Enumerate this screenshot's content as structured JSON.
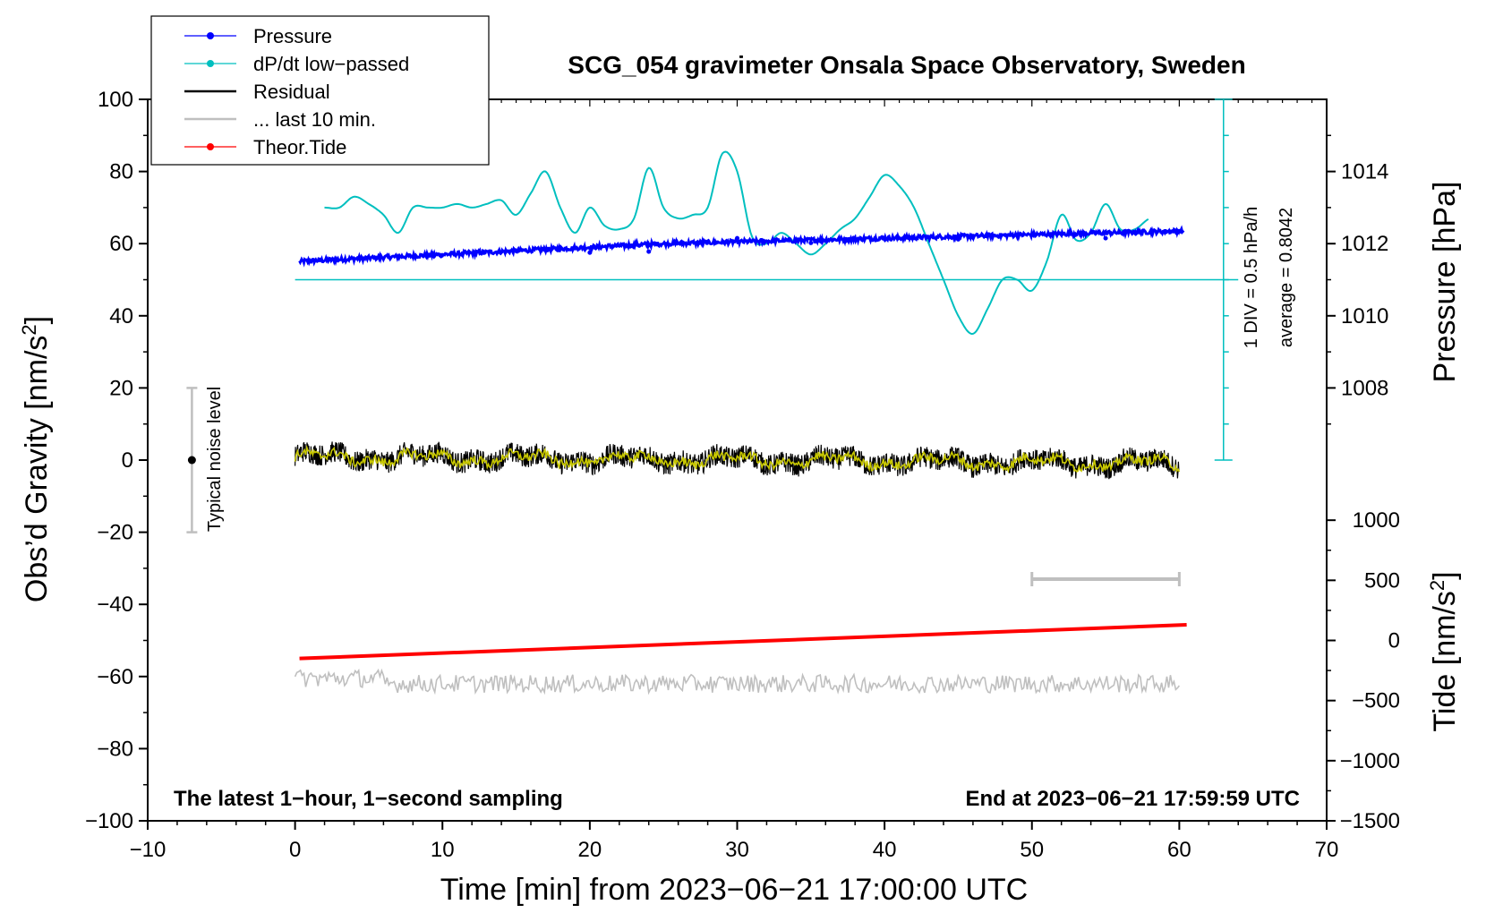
{
  "chart_data": {
    "type": "line",
    "title": "SCG_054 gravimeter Onsala Space Observatory, Sweden",
    "xlabel": "Time [min] from 2023−06−21 17:00:00 UTC",
    "ylabel_left_main": "Obs’d Gravity [nm/s",
    "ylabel_left_sup": "2",
    "ylabel_left_tail": "]",
    "ylabel_right_upper": "Pressure [hPa]",
    "ylabel_right_lower_main": "Tide [nm/s",
    "ylabel_right_lower_sup": "2",
    "ylabel_right_lower_tail": "]",
    "xlim": [
      -10,
      70
    ],
    "ylim": [
      -100,
      100
    ],
    "x_ticks": [
      "−10",
      "0",
      "10",
      "20",
      "30",
      "40",
      "50",
      "60",
      "70"
    ],
    "y_ticks": [
      "−100",
      "−80",
      "−60",
      "−40",
      "−20",
      "0",
      "20",
      "40",
      "60",
      "80",
      "100"
    ],
    "pressure_axis": {
      "ticks": [
        "1008",
        "1010",
        "1012",
        "1014"
      ],
      "range_hpa": [
        1003,
        1016
      ]
    },
    "tide_axis": {
      "ticks": [
        "−1500",
        "−1000",
        "−500",
        "0",
        "500",
        "1000"
      ],
      "range": [
        -1500,
        1000
      ]
    },
    "legend": [
      {
        "label": "Pressure",
        "color": "#0000ff",
        "marker": true
      },
      {
        "label": "dP/dt low−passed",
        "color": "#00bfbf",
        "marker": true
      },
      {
        "label": "Residual",
        "color": "#000000",
        "marker": false
      },
      {
        "label": "... last 10 min.",
        "color": "#bfbfbf",
        "marker": false
      },
      {
        "label": "Theor.Tide",
        "color": "#ff0000",
        "marker": true
      }
    ],
    "annotations": {
      "noise_label": "Typical noise level",
      "noise_bar": {
        "x": -7,
        "y_center": 0,
        "y_min": -20,
        "y_max": 20
      },
      "div_scale": "1 DIV = 0.5 hPa/h",
      "average": "average = 0.8042",
      "footer_left": "The latest 1−hour, 1−second sampling",
      "footer_right": "End at 2023−06−21 17:59:59 UTC",
      "ten_min_bar": {
        "x_start": 50,
        "x_end": 60,
        "y": -33
      },
      "dpdt_scale_bar": {
        "x": 63,
        "y_min": 0,
        "y_max": 100,
        "baseline_y": 50
      }
    },
    "series": [
      {
        "name": "Pressure",
        "color": "#0000ff",
        "units": "hPa",
        "x": [
          0,
          5,
          10,
          15,
          20,
          25,
          30,
          35,
          40,
          45,
          50,
          55,
          60
        ],
        "values": [
          1011.5,
          1011.6,
          1011.7,
          1011.8,
          1011.9,
          1012.0,
          1012.05,
          1012.1,
          1012.15,
          1012.2,
          1012.25,
          1012.3,
          1012.35
        ]
      },
      {
        "name": "dP/dt low−passed",
        "color": "#00bfbf",
        "units": "plot nm/s2 scale",
        "x": [
          2,
          3,
          4,
          5,
          6,
          7,
          8,
          9,
          10,
          11,
          12,
          13,
          14,
          15,
          16,
          17,
          18,
          19,
          20,
          21,
          22,
          23,
          24,
          25,
          26,
          27,
          28,
          29,
          30,
          31,
          32,
          33,
          34,
          35,
          36,
          37,
          38,
          39,
          40,
          41,
          42,
          43,
          44,
          45,
          46,
          47,
          48,
          49,
          50,
          51,
          52,
          53,
          54,
          55,
          56,
          57,
          58
        ],
        "values": [
          70,
          70,
          73,
          71,
          68,
          63,
          70,
          70,
          70,
          71,
          70,
          71,
          72,
          68,
          74,
          80,
          70,
          63,
          70,
          65,
          64,
          67,
          81,
          70,
          67,
          68,
          70,
          85,
          80,
          62,
          60,
          63,
          60,
          57,
          60,
          64,
          67,
          73,
          79,
          76,
          70,
          60,
          50,
          40,
          35,
          42,
          50,
          50,
          47,
          55,
          68,
          61,
          63,
          71,
          64,
          64,
          67
        ]
      },
      {
        "name": "Residual",
        "color": "#000000",
        "units": "nm/s2",
        "x": [
          0,
          60
        ],
        "values": [
          1,
          -1
        ],
        "noise_amplitude": 3
      },
      {
        "name": "Residual low−passed",
        "color": "#c8c800",
        "units": "nm/s2",
        "x": [
          0,
          60
        ],
        "values": [
          0.8,
          -0.8
        ],
        "noise_amplitude": 1.3
      },
      {
        "name": "... last 10 min.",
        "color": "#bfbfbf",
        "units": "nm/s2",
        "x": [
          0,
          60
        ],
        "values": [
          -62,
          -62
        ],
        "noise_amplitude": 2.5
      },
      {
        "name": "Theor.Tide",
        "color": "#ff0000",
        "units": "nm/s2 (right axis)",
        "x": [
          0,
          60
        ],
        "values": [
          -150,
          130
        ]
      }
    ]
  }
}
